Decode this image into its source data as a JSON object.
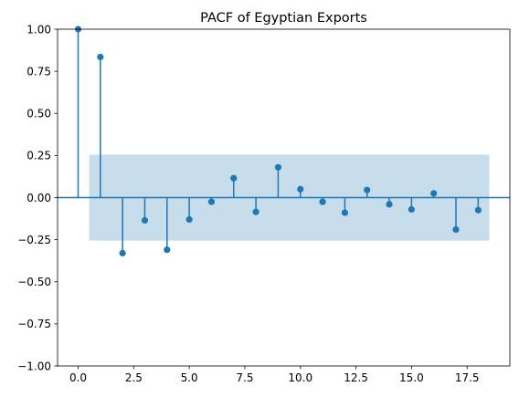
{
  "chart_data": {
    "type": "stem",
    "title": "PACF of Egyptian Exports",
    "xlabel": "",
    "ylabel": "",
    "xlim": [
      -0.925,
      19.425
    ],
    "ylim": [
      -1.0,
      1.0
    ],
    "x_ticks": [
      0,
      2.5,
      5,
      7.5,
      10,
      12.5,
      15,
      17.5
    ],
    "x_tick_labels": [
      "0.0",
      "2.5",
      "5.0",
      "7.5",
      "10.0",
      "12.5",
      "15.0",
      "17.5"
    ],
    "y_ticks": [
      -1.0,
      -0.75,
      -0.5,
      -0.25,
      0.0,
      0.25,
      0.5,
      0.75,
      1.0
    ],
    "y_tick_labels": [
      "−1.00",
      "−0.75",
      "−0.50",
      "−0.25",
      "0.00",
      "0.25",
      "0.50",
      "0.75",
      "1.00"
    ],
    "lags": [
      0,
      1,
      2,
      3,
      4,
      5,
      6,
      7,
      8,
      9,
      10,
      11,
      12,
      13,
      14,
      15,
      16,
      17,
      18
    ],
    "values": [
      1.0,
      0.835,
      -0.33,
      -0.135,
      -0.31,
      -0.13,
      -0.025,
      0.115,
      -0.085,
      0.18,
      0.05,
      -0.025,
      -0.09,
      0.045,
      -0.04,
      -0.07,
      0.025,
      -0.19,
      -0.075
    ],
    "confidence_band": {
      "x_start": 0.5,
      "x_end": 18.5,
      "upper": 0.255,
      "lower": -0.255
    },
    "grid": false,
    "colors": {
      "stem": "#1f77b4",
      "marker": "#1f77b4",
      "band": "#1f77b4",
      "band_opacity": 0.25,
      "zero_line": "#1f77b4",
      "axes": "#000000"
    }
  }
}
